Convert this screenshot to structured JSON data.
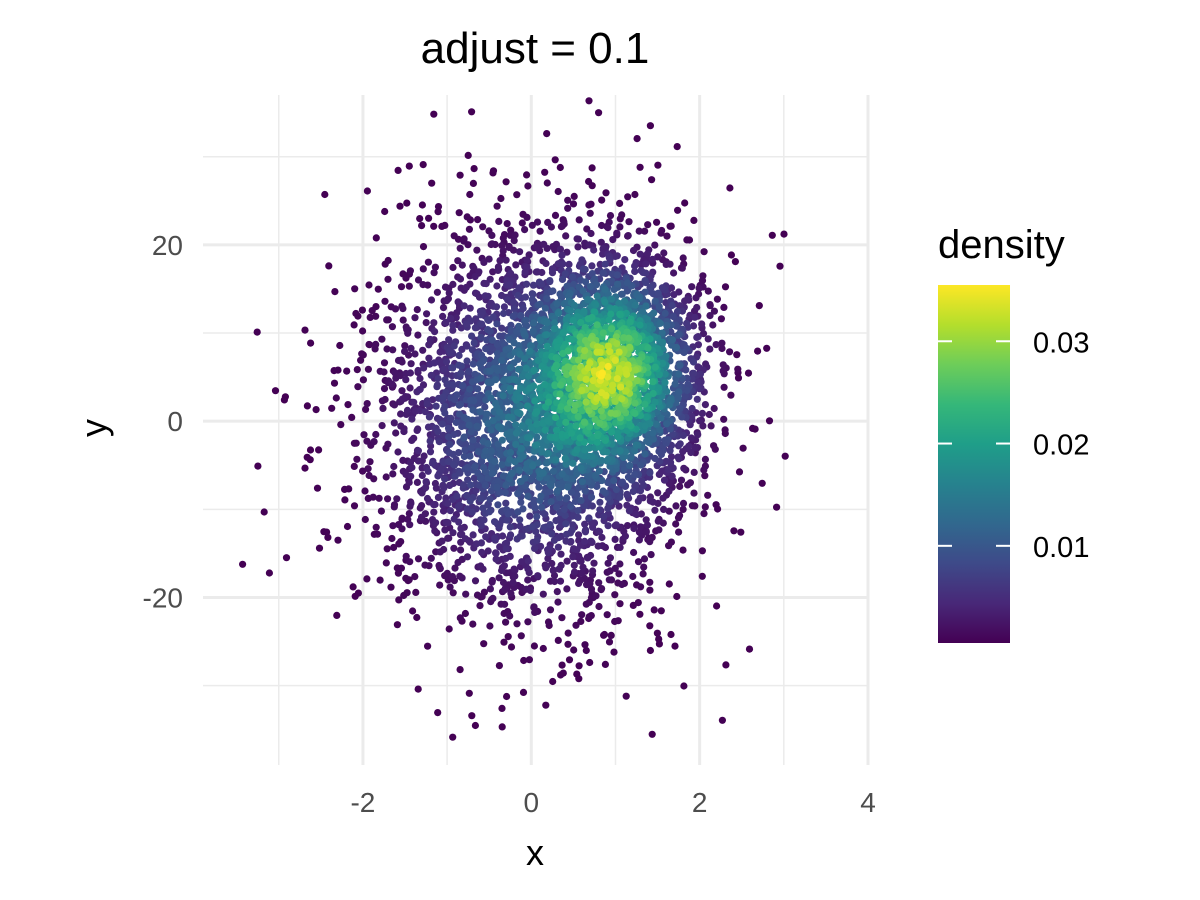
{
  "chart_data": {
    "type": "scatter",
    "title": "adjust = 0.1",
    "xlabel": "x",
    "ylabel": "y",
    "xlim": [
      -3.9,
      4.0
    ],
    "ylim": [
      -39,
      37
    ],
    "x_ticks": [
      -2,
      0,
      2,
      4
    ],
    "y_ticks": [
      -20,
      0,
      20
    ],
    "grid": true,
    "n_points": 5000,
    "distribution": {
      "components": [
        {
          "weight": 0.62,
          "x_mean": 0.0,
          "x_sd": 0.95,
          "y_mean": 0.0,
          "y_sd": 11.0
        },
        {
          "weight": 0.38,
          "x_mean": 1.0,
          "x_sd": 0.55,
          "y_mean": 6.0,
          "y_sd": 6.5
        }
      ]
    },
    "color_scale": {
      "name": "density",
      "palette": "viridis",
      "colors": [
        "#440154",
        "#482878",
        "#3E4A89",
        "#31688E",
        "#26828E",
        "#1F9E89",
        "#35B779",
        "#6DCD59",
        "#B4DE2C",
        "#FDE725"
      ],
      "min": 0.0005,
      "max": 0.0355,
      "breaks": [
        0.01,
        0.02,
        0.03
      ],
      "break_labels": [
        "0.01",
        "0.02",
        "0.03"
      ]
    },
    "legend_position": "right"
  }
}
